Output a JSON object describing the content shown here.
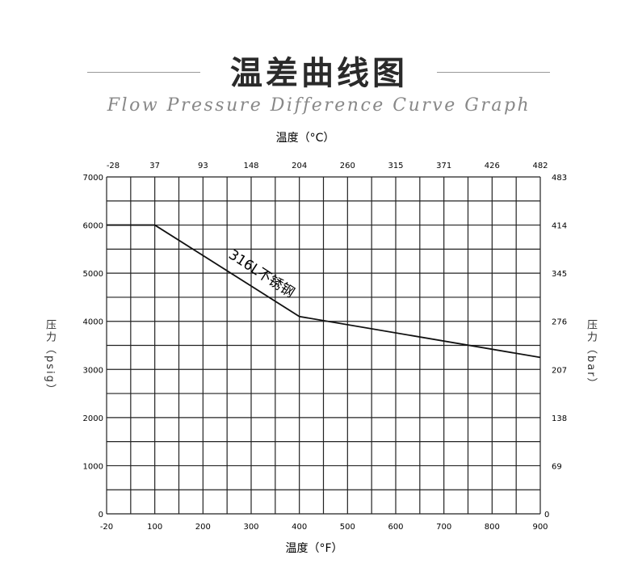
{
  "header": {
    "title": "温差曲线图",
    "subtitle": "Flow Pressure Difference Curve Graph"
  },
  "chart_data": {
    "type": "line",
    "title": "温差曲线图",
    "xlabel": "温度（°F）",
    "x2label": "温度（°C）",
    "ylabel": "压力（psig）",
    "y2label": "压力（bar）",
    "x_ticks": [
      "-20",
      "100",
      "200",
      "300",
      "400",
      "500",
      "600",
      "700",
      "800",
      "900"
    ],
    "x2_ticks": [
      "-28",
      "37",
      "93",
      "148",
      "204",
      "260",
      "315",
      "371",
      "426",
      "482"
    ],
    "y_ticks": [
      "0",
      "1000",
      "2000",
      "3000",
      "4000",
      "5000",
      "6000",
      "7000"
    ],
    "y2_ticks": [
      "0",
      "69",
      "138",
      "207",
      "276",
      "345",
      "414",
      "483"
    ],
    "xlim": [
      -20,
      900
    ],
    "ylim": [
      0,
      7000
    ],
    "grid": true,
    "series": [
      {
        "name": "316L不锈钢",
        "x": [
          -20,
          100,
          400,
          900
        ],
        "y": [
          6000,
          6000,
          4100,
          3250
        ],
        "color": "#111111"
      }
    ]
  }
}
